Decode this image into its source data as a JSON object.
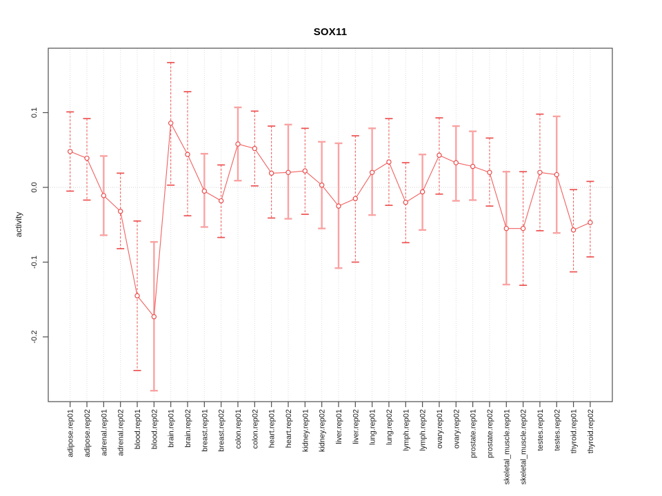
{
  "chart_data": {
    "type": "scatter",
    "subtype": "points-with-error-bars",
    "title": "SOX11",
    "xlabel": "",
    "ylabel": "activity",
    "ylim": [
      -0.287,
      0.186
    ],
    "grid": "light dotted vertical gridline at every category; light dotted horizontal line at y=0",
    "legend": "none",
    "marker": "open-circle",
    "x_tick_label_rotation": 90,
    "yticks": [
      {
        "label": "0.1",
        "value": 0.1
      },
      {
        "label": "0.0",
        "value": 0.0
      },
      {
        "label": "-0.1",
        "value": -0.1
      },
      {
        "label": "-0.2",
        "value": -0.2
      }
    ],
    "colors": {
      "point": "#e84c4c",
      "line": "#f16060",
      "bar_dark": "#ee4f4f",
      "bar_light": "#f9a3a3",
      "grid": "#dbdbdb",
      "zero_line": "#cfcfcf",
      "axis": "#4d4d4d",
      "text": "#1a1a1a"
    },
    "points": [
      {
        "label": "adipose.rep01",
        "value": 0.048,
        "lo": -0.005,
        "hi": 0.101,
        "bar": "dashed"
      },
      {
        "label": "adipose.rep02",
        "value": 0.039,
        "lo": -0.017,
        "hi": 0.092,
        "bar": "dashed"
      },
      {
        "label": "adrenal.rep01",
        "value": -0.011,
        "lo": -0.064,
        "hi": 0.042,
        "bar": "light"
      },
      {
        "label": "adrenal.rep02",
        "value": -0.032,
        "lo": -0.082,
        "hi": 0.019,
        "bar": "dashed"
      },
      {
        "label": "blood.rep01",
        "value": -0.145,
        "lo": -0.245,
        "hi": -0.045,
        "bar": "dashed"
      },
      {
        "label": "blood.rep02",
        "value": -0.173,
        "lo": -0.272,
        "hi": -0.073,
        "bar": "light"
      },
      {
        "label": "brain.rep01",
        "value": 0.086,
        "lo": 0.003,
        "hi": 0.167,
        "bar": "dashed"
      },
      {
        "label": "brain.rep02",
        "value": 0.044,
        "lo": -0.038,
        "hi": 0.128,
        "bar": "dashed"
      },
      {
        "label": "breast.rep01",
        "value": -0.005,
        "lo": -0.053,
        "hi": 0.045,
        "bar": "light"
      },
      {
        "label": "breast.rep02",
        "value": -0.018,
        "lo": -0.067,
        "hi": 0.03,
        "bar": "dashed"
      },
      {
        "label": "colon.rep01",
        "value": 0.058,
        "lo": 0.009,
        "hi": 0.107,
        "bar": "light"
      },
      {
        "label": "colon.rep02",
        "value": 0.052,
        "lo": 0.002,
        "hi": 0.102,
        "bar": "dashed"
      },
      {
        "label": "heart.rep01",
        "value": 0.019,
        "lo": -0.041,
        "hi": 0.082,
        "bar": "dashed"
      },
      {
        "label": "heart.rep02",
        "value": 0.02,
        "lo": -0.042,
        "hi": 0.084,
        "bar": "light"
      },
      {
        "label": "kidney.rep01",
        "value": 0.022,
        "lo": -0.036,
        "hi": 0.079,
        "bar": "dashed"
      },
      {
        "label": "kidney.rep02",
        "value": 0.003,
        "lo": -0.055,
        "hi": 0.061,
        "bar": "light"
      },
      {
        "label": "liver.rep01",
        "value": -0.025,
        "lo": -0.108,
        "hi": 0.059,
        "bar": "light"
      },
      {
        "label": "liver.rep02",
        "value": -0.015,
        "lo": -0.1,
        "hi": 0.069,
        "bar": "dashed"
      },
      {
        "label": "lung.rep01",
        "value": 0.02,
        "lo": -0.037,
        "hi": 0.079,
        "bar": "light"
      },
      {
        "label": "lung.rep02",
        "value": 0.034,
        "lo": -0.024,
        "hi": 0.092,
        "bar": "dashed"
      },
      {
        "label": "lymph.rep01",
        "value": -0.02,
        "lo": -0.074,
        "hi": 0.033,
        "bar": "dashed"
      },
      {
        "label": "lymph.rep02",
        "value": -0.006,
        "lo": -0.057,
        "hi": 0.044,
        "bar": "light"
      },
      {
        "label": "ovary.rep01",
        "value": 0.043,
        "lo": -0.009,
        "hi": 0.093,
        "bar": "dashed"
      },
      {
        "label": "ovary.rep02",
        "value": 0.033,
        "lo": -0.018,
        "hi": 0.082,
        "bar": "light"
      },
      {
        "label": "prostate.rep01",
        "value": 0.028,
        "lo": -0.017,
        "hi": 0.075,
        "bar": "light"
      },
      {
        "label": "prostate.rep02",
        "value": 0.02,
        "lo": -0.025,
        "hi": 0.066,
        "bar": "dashed"
      },
      {
        "label": "skeletal_muscle.rep01",
        "value": -0.055,
        "lo": -0.13,
        "hi": 0.021,
        "bar": "light"
      },
      {
        "label": "skeletal_muscle.rep02",
        "value": -0.055,
        "lo": -0.131,
        "hi": 0.021,
        "bar": "dashed"
      },
      {
        "label": "testes.rep01",
        "value": 0.02,
        "lo": -0.058,
        "hi": 0.098,
        "bar": "dashed"
      },
      {
        "label": "testes.rep02",
        "value": 0.017,
        "lo": -0.061,
        "hi": 0.095,
        "bar": "light"
      },
      {
        "label": "thyroid.rep01",
        "value": -0.057,
        "lo": -0.113,
        "hi": -0.003,
        "bar": "dashed"
      },
      {
        "label": "thyroid.rep02",
        "value": -0.047,
        "lo": -0.093,
        "hi": 0.008,
        "bar": "dashed"
      }
    ]
  }
}
